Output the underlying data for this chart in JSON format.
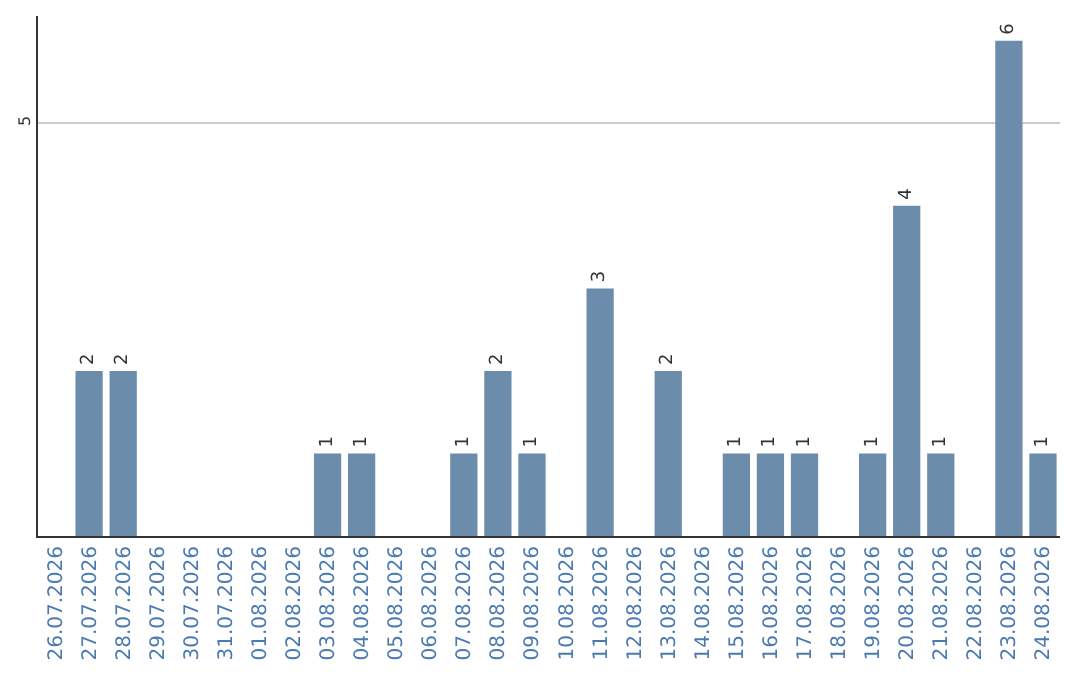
{
  "chart_data": {
    "type": "bar",
    "categories": [
      "26.07.2026",
      "27.07.2026",
      "28.07.2026",
      "29.07.2026",
      "30.07.2026",
      "31.07.2026",
      "01.08.2026",
      "02.08.2026",
      "03.08.2026",
      "04.08.2026",
      "05.08.2026",
      "06.08.2026",
      "07.08.2026",
      "08.08.2026",
      "09.08.2026",
      "10.08.2026",
      "11.08.2026",
      "12.08.2026",
      "13.08.2026",
      "14.08.2026",
      "15.08.2026",
      "16.08.2026",
      "17.08.2026",
      "18.08.2026",
      "19.08.2026",
      "20.08.2026",
      "21.08.2026",
      "22.08.2026",
      "23.08.2026",
      "24.08.2026"
    ],
    "values": [
      0,
      2,
      2,
      0,
      0,
      0,
      0,
      0,
      1,
      1,
      0,
      0,
      1,
      2,
      1,
      0,
      3,
      0,
      2,
      0,
      1,
      1,
      1,
      0,
      1,
      4,
      1,
      0,
      6,
      1
    ],
    "value_labels": [
      null,
      "2",
      "2",
      null,
      null,
      null,
      null,
      null,
      "1",
      "1",
      null,
      null,
      "1",
      "2",
      "1",
      null,
      "3",
      null,
      "2",
      null,
      "1",
      "1",
      "1",
      null,
      "1",
      "4",
      "1",
      null,
      "6",
      "1"
    ],
    "color": "#6b8cab",
    "ylim": [
      0,
      6.3
    ],
    "yticks": [
      5
    ],
    "grid": "y"
  }
}
